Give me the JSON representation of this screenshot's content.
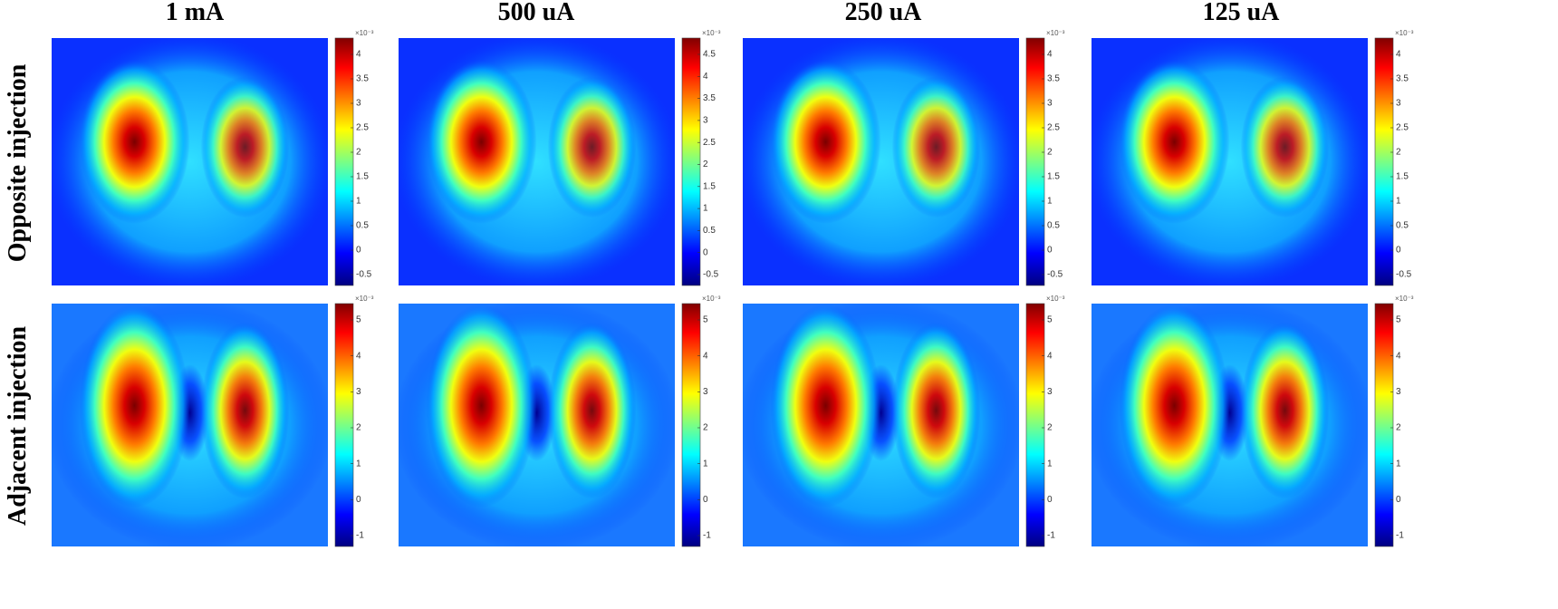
{
  "columns": [
    "1 mA",
    "500 uA",
    "250 uA",
    "125 uA"
  ],
  "rows": [
    "Opposite injection",
    "Adjacent injection"
  ],
  "panels": [
    {
      "exponent": "×10⁻³",
      "ticks": [
        4,
        3.5,
        3,
        2.5,
        2,
        1.5,
        1,
        0.5,
        0,
        -0.5
      ]
    },
    {
      "exponent": "×10⁻³",
      "ticks": [
        4.5,
        4,
        3.5,
        3,
        2.5,
        2,
        1.5,
        1,
        0.5,
        0,
        -0.5
      ]
    },
    {
      "exponent": "×10⁻³",
      "ticks": [
        4,
        3.5,
        3,
        2.5,
        2,
        1.5,
        1,
        0.5,
        0,
        -0.5
      ]
    },
    {
      "exponent": "×10⁻³",
      "ticks": [
        4,
        3.5,
        3,
        2.5,
        2,
        1.5,
        1,
        0.5,
        0,
        -0.5
      ]
    },
    {
      "exponent": "×10⁻³",
      "ticks": [
        5,
        4,
        3,
        2,
        1,
        0,
        -1
      ]
    },
    {
      "exponent": "×10⁻³",
      "ticks": [
        5,
        4,
        3,
        2,
        1,
        0,
        -1
      ]
    },
    {
      "exponent": "×10⁻³",
      "ticks": [
        5,
        4,
        3,
        2,
        1,
        0,
        -1
      ]
    },
    {
      "exponent": "×10⁻³",
      "ticks": [
        5,
        4,
        3,
        2,
        1,
        0,
        -1
      ]
    }
  ]
}
